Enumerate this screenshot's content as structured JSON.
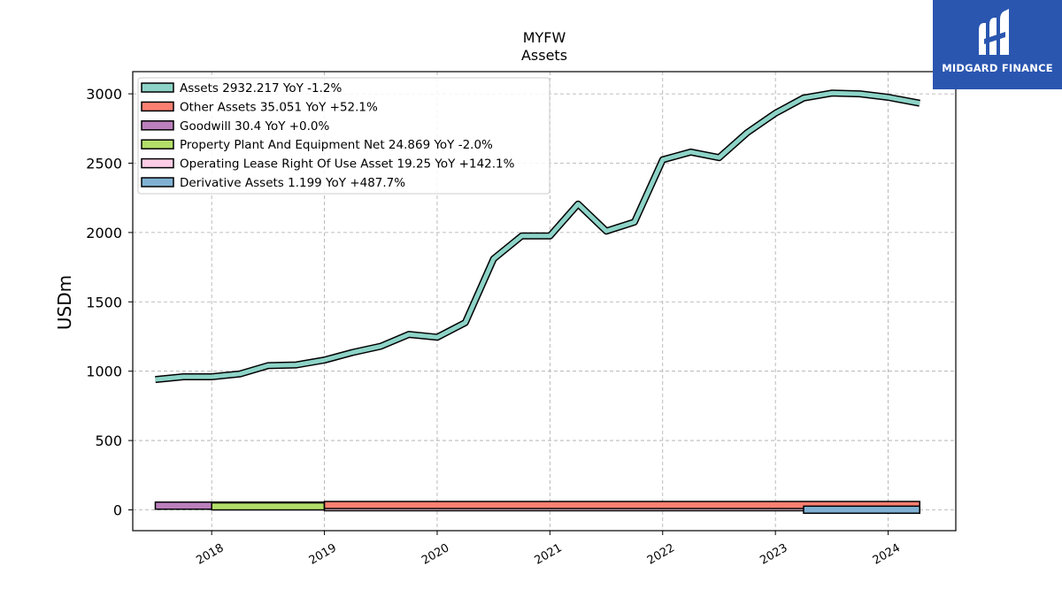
{
  "header": {
    "ticker": "MYFW",
    "subtitle": "Assets"
  },
  "logo": {
    "text": "MIDGARD FINANCE",
    "bg": "#2a56b0"
  },
  "chart_data": {
    "type": "line",
    "xlim": [
      2017.3,
      2024.6
    ],
    "ylim": [
      -150,
      3160
    ],
    "ylabel": "USDm",
    "yticks": [
      0,
      500,
      1000,
      1500,
      2000,
      2500,
      3000
    ],
    "xticks": [
      "2018",
      "2019",
      "2020",
      "2021",
      "2022",
      "2023",
      "2024"
    ],
    "grid": true,
    "legend_position": "top-left",
    "series": [
      {
        "name": "Assets",
        "legend": "Assets  2932.217 YoY -1.2%",
        "color": "#8dd3c7",
        "style": "line",
        "x": [
          2017.5,
          2017.75,
          2018.0,
          2018.25,
          2018.5,
          2018.75,
          2019.0,
          2019.25,
          2019.5,
          2019.75,
          2020.0,
          2020.25,
          2020.5,
          2020.75,
          2021.0,
          2021.25,
          2021.5,
          2021.75,
          2022.0,
          2022.25,
          2022.5,
          2022.75,
          2023.0,
          2023.25,
          2023.5,
          2023.75,
          2024.0,
          2024.28
        ],
        "y": [
          940,
          960,
          960,
          980,
          1040,
          1045,
          1080,
          1135,
          1180,
          1265,
          1245,
          1350,
          1810,
          1975,
          1975,
          2205,
          2010,
          2075,
          2525,
          2580,
          2540,
          2720,
          2860,
          2970,
          3005,
          3000,
          2975,
          2932
        ]
      },
      {
        "name": "Other Assets",
        "legend": "Other Assets  35.051 YoY +52.1%",
        "color": "#fb8072",
        "style": "band",
        "x": [
          2019.0,
          2019.5,
          2020.0,
          2020.5,
          2021.0,
          2021.5,
          2022.0,
          2022.5,
          2023.0,
          2023.5,
          2024.0,
          2024.28
        ],
        "y": [
          35,
          33,
          30,
          32,
          36,
          34,
          37,
          38,
          36,
          34,
          30,
          35.051
        ]
      },
      {
        "name": "Goodwill",
        "legend": "Goodwill  30.4 YoY +0.0%",
        "color": "#bc80bd",
        "style": "band",
        "x": [
          2017.5,
          2018.0,
          2018.5,
          2019.0
        ],
        "y": [
          30.4,
          30.4,
          30.4,
          30.4
        ]
      },
      {
        "name": "Property Plant And Equipment Net",
        "legend": "Property Plant And Equipment Net  24.869 YoY -2.0%",
        "color": "#b3de69",
        "style": "band",
        "x": [
          2018.0,
          2018.5,
          2019.0
        ],
        "y": [
          25,
          25,
          25
        ]
      },
      {
        "name": "Operating Lease Right Of Use Asset",
        "legend": "Operating Lease Right Of Use Asset  19.25 YoY +142.1%",
        "color": "#fccde5",
        "style": "band",
        "x": [
          2019.0,
          2019.5,
          2020.0,
          2020.5,
          2021.0,
          2021.5,
          2022.0,
          2022.5,
          2023.0,
          2023.5,
          2024.0,
          2024.28
        ],
        "y": [
          5,
          6,
          7,
          8,
          9,
          10,
          14,
          15,
          12,
          10,
          9,
          19.25
        ]
      },
      {
        "name": "Derivative Assets",
        "legend": "Derivative Assets  1.199 YoY +487.7%",
        "color": "#80b1d3",
        "style": "band",
        "x": [
          2023.25,
          2023.5,
          2024.0,
          2024.28
        ],
        "y": [
          2,
          3,
          1,
          1.199
        ]
      }
    ]
  }
}
